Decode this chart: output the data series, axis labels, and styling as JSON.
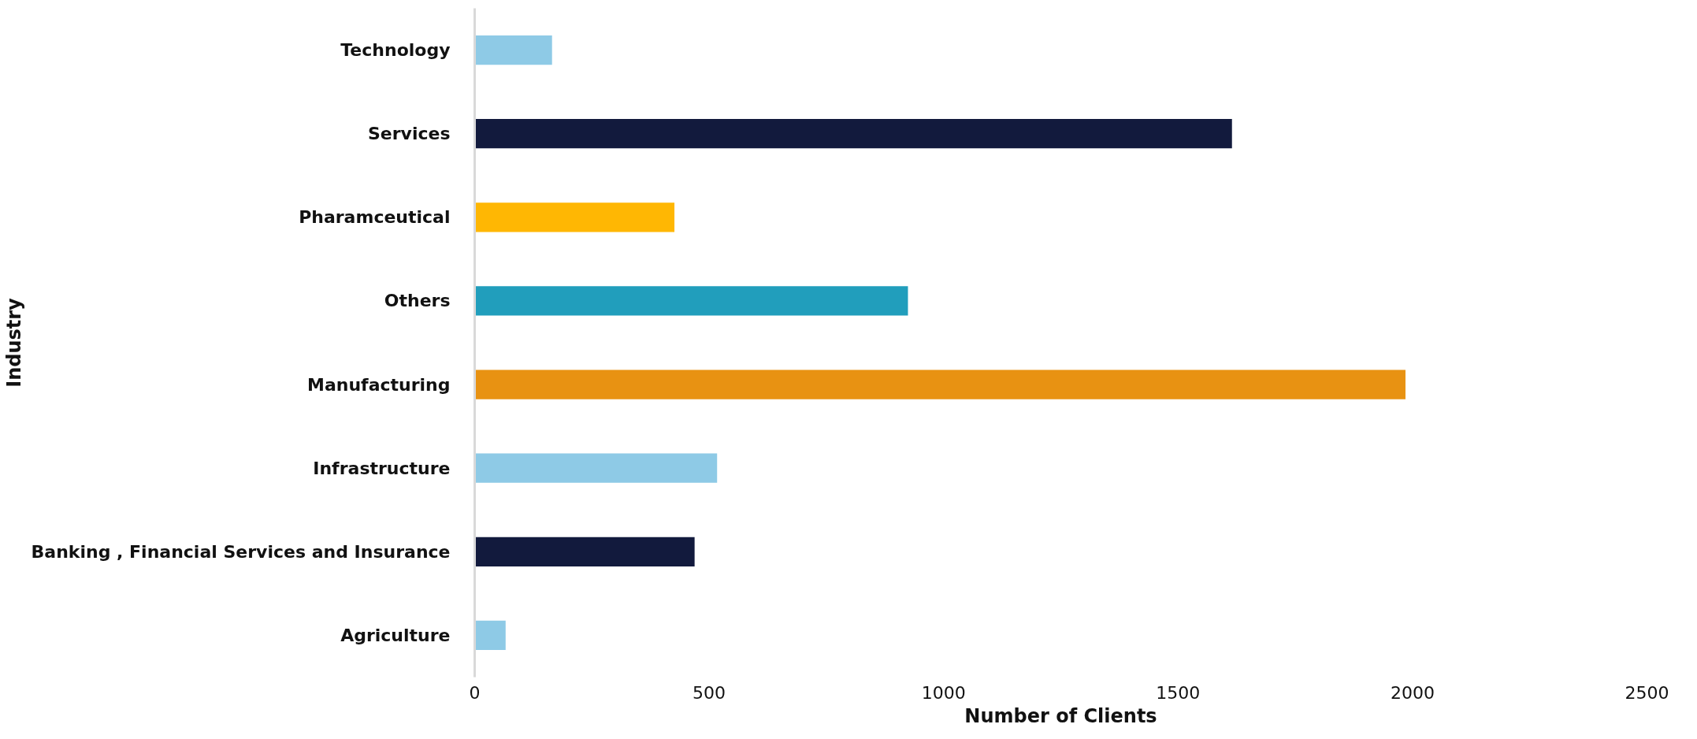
{
  "chart_data": {
    "type": "bar",
    "orientation": "horizontal",
    "xlabel": "Number of Clients",
    "ylabel": "Industry",
    "categories": [
      "Technology",
      "Services",
      "Pharamceutical",
      "Others",
      "Manufacturing",
      "Infrastructure",
      "Banking , Financial Services and Insurance",
      "Agriculture"
    ],
    "values": [
      165,
      1615,
      426,
      924,
      1985,
      517,
      469,
      66
    ],
    "colors": [
      "#8ecae6",
      "#121a3d",
      "#ffb703",
      "#219ebc",
      "#e89212",
      "#8ecae6",
      "#121a3d",
      "#8ecae6"
    ],
    "xlim": [
      0,
      2500
    ],
    "xticks": [
      0,
      500,
      1000,
      1500,
      2000,
      2500
    ],
    "grid": false
  }
}
